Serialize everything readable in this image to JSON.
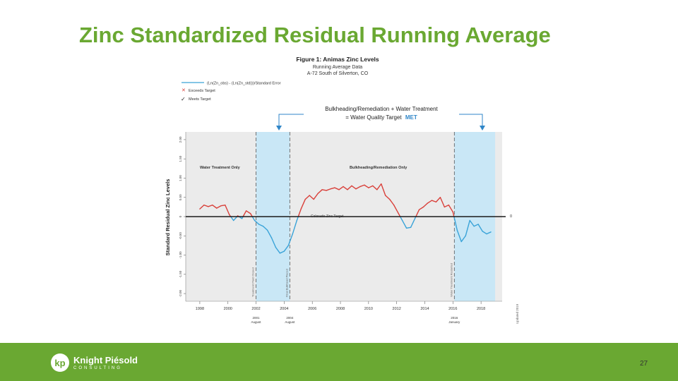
{
  "slide": {
    "title": "Zinc Standardized Residual  Running Average",
    "page_number": "27"
  },
  "footer": {
    "logo_mark": "kp",
    "logo_name": "Knight Piésold",
    "logo_sub": "CONSULTING"
  },
  "colors": {
    "accent": "#6aa832",
    "exceeds": "#d9403a",
    "meets": "#3aa3d8",
    "shade": "#c9e7f6",
    "plot_bg": "#ebebeb"
  },
  "chart_data": {
    "type": "line",
    "title": "Figure 1: Animas Zinc Levels",
    "subtitle_1": "Running Average Data",
    "subtitle_2": "A-72 South of Silverton, CO",
    "legend": {
      "line_label": "(Ln(Zn_obs) - (Ln(Zn_std)))/Standard Error",
      "exceeds_label": "Exceeds Target",
      "meets_label": "Meets Target"
    },
    "banner_1": "Bulkheading/Remediation + Water Treatment",
    "banner_2_prefix": "= Water Quality Target",
    "banner_2_highlight": "MET",
    "ylabel": "Standard Residual Zinc Levels",
    "ylim": [
      -2.2,
      2.2
    ],
    "yticks": [
      {
        "v": 2,
        "label": "2.00"
      },
      {
        "v": 1.5,
        "label": "1.50"
      },
      {
        "v": 1,
        "label": "1.00"
      },
      {
        "v": 0.5,
        "label": "0.50"
      },
      {
        "v": 0,
        "label": "0"
      },
      {
        "v": -0.5,
        "label": "-0.50"
      },
      {
        "v": -1,
        "label": "-1.00"
      },
      {
        "v": -1.5,
        "label": "-1.50"
      },
      {
        "v": -2,
        "label": "-2.00"
      }
    ],
    "xlim": [
      1997.0,
      2019.5
    ],
    "xticks": [
      "1998",
      "2000",
      "2002",
      "2004",
      "2006",
      "2008",
      "2010",
      "2012",
      "2014",
      "2016",
      "2018"
    ],
    "target_value": 0,
    "target_label": "Colorado Zinc Target",
    "target_end_label": "0",
    "annotations": {
      "phase_1": "Water Treatment Only",
      "phase_2": "Bulkheading/Remediation Only"
    },
    "shaded_periods": [
      {
        "start": 2002.0,
        "end": 2004.4
      },
      {
        "start": 2016.1,
        "end": 2019.0
      }
    ],
    "events": [
      {
        "x": 2002.0,
        "label_1": "2001",
        "label_2": "August",
        "note": "Treatment Plant Closed"
      },
      {
        "x": 2004.4,
        "label_1": "2004",
        "label_2": "August",
        "note": "Final Bulkhead Placed"
      },
      {
        "x": 2016.1,
        "label_1": "2016",
        "label_2": "January",
        "note": "Water Treatment Restarted"
      }
    ],
    "side_note": "Updated 2019",
    "series": [
      {
        "name": "Standardized Residual Running Average",
        "x": [
          1998.0,
          1998.3,
          1998.6,
          1998.9,
          1999.2,
          1999.5,
          1999.8,
          2000.1,
          2000.4,
          2000.7,
          2001.0,
          2001.3,
          2001.6,
          2001.9,
          2002.2,
          2002.5,
          2002.8,
          2003.1,
          2003.4,
          2003.7,
          2004.0,
          2004.3,
          2004.6,
          2004.9,
          2005.2,
          2005.5,
          2005.8,
          2006.1,
          2006.4,
          2006.7,
          2007.0,
          2007.3,
          2007.6,
          2007.9,
          2008.2,
          2008.5,
          2008.8,
          2009.1,
          2009.4,
          2009.7,
          2010.0,
          2010.3,
          2010.6,
          2010.9,
          2011.2,
          2011.5,
          2011.8,
          2012.1,
          2012.4,
          2012.7,
          2013.0,
          2013.3,
          2013.6,
          2013.9,
          2014.2,
          2014.5,
          2014.8,
          2015.1,
          2015.4,
          2015.7,
          2016.0,
          2016.3,
          2016.6,
          2016.9,
          2017.2,
          2017.5,
          2017.8,
          2018.1,
          2018.4,
          2018.7
        ],
        "values": [
          0.2,
          0.3,
          0.26,
          0.3,
          0.22,
          0.28,
          0.3,
          0.05,
          -0.1,
          0.02,
          -0.05,
          0.15,
          0.08,
          -0.1,
          -0.2,
          -0.25,
          -0.35,
          -0.55,
          -0.8,
          -0.95,
          -0.9,
          -0.75,
          -0.45,
          -0.1,
          0.2,
          0.45,
          0.55,
          0.45,
          0.6,
          0.7,
          0.68,
          0.72,
          0.75,
          0.7,
          0.78,
          0.7,
          0.8,
          0.72,
          0.78,
          0.82,
          0.75,
          0.8,
          0.7,
          0.85,
          0.55,
          0.45,
          0.3,
          0.1,
          -0.1,
          -0.3,
          -0.28,
          -0.05,
          0.18,
          0.25,
          0.35,
          0.42,
          0.38,
          0.5,
          0.25,
          0.3,
          0.12,
          -0.35,
          -0.65,
          -0.5,
          -0.1,
          -0.25,
          -0.2,
          -0.38,
          -0.45,
          -0.4
        ]
      }
    ]
  }
}
